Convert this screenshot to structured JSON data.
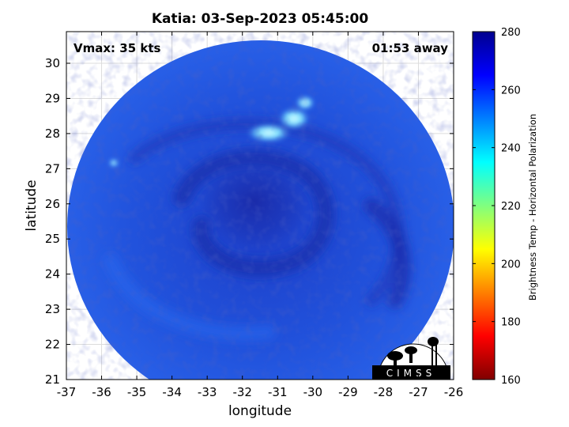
{
  "title": "Katia: 03-Sep-2023 05:45:00",
  "annotation_left": "Vmax: 35 kts",
  "annotation_right": "01:53 away",
  "logo_text": "CIMSS",
  "colors": {
    "ocean_base": "#1f4bd6",
    "ocean_dark": "#1a2fb0",
    "ocean_light": "#2a66ee",
    "cold_cloud": "#aef0ff",
    "frame": "#000000"
  },
  "chart_data": {
    "type": "heatmap",
    "title": "Katia: 03-Sep-2023 05:45:00",
    "xlabel": "longitude",
    "ylabel": "latitude",
    "xlim": [
      -37,
      -26
    ],
    "ylim": [
      21,
      30.9
    ],
    "x_ticks": [
      -37,
      -36,
      -35,
      -34,
      -33,
      -32,
      -31,
      -30,
      -29,
      -28,
      -27,
      -26
    ],
    "y_ticks": [
      21,
      22,
      23,
      24,
      25,
      26,
      27,
      28,
      29,
      30
    ],
    "grid": true,
    "storm_center": {
      "lon": -31.7,
      "lat": 25.9
    },
    "cold_cloud_region": {
      "lon": [
        -32.4,
        -30.1
      ],
      "lat": [
        27.8,
        29.1
      ]
    },
    "colorbar": {
      "label": "Brightness Temp - Horizontal Polarization",
      "min": 160,
      "max": 280,
      "ticks": [
        160,
        180,
        200,
        220,
        240,
        260,
        280
      ],
      "colormap": "jet"
    }
  }
}
